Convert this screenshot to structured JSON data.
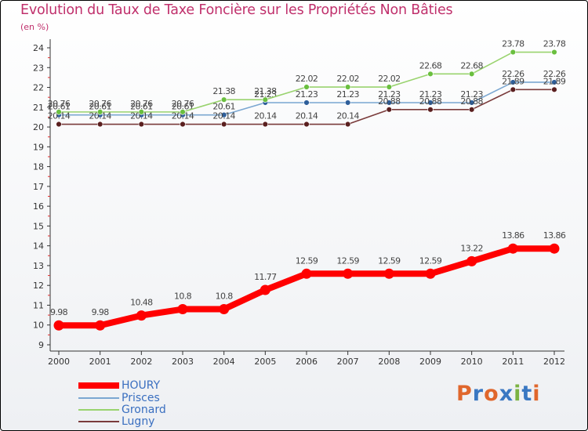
{
  "title": "Evolution du Taux de Taxe Foncière sur les Propriétés Non Bâties",
  "unit_label": "(en %)",
  "logo": {
    "text": "Proxiti",
    "letters": [
      "P",
      "r",
      "o",
      "x",
      "i",
      "t",
      "i"
    ],
    "colors": [
      "#e0672c",
      "#3a78c2",
      "#e0672c",
      "#3a78c2",
      "#7cb342",
      "#3a78c2",
      "#e0672c"
    ]
  },
  "chart_data": {
    "type": "line",
    "title": "Evolution du Taux de Taxe Foncière sur les Propriétés Non Bâties",
    "ylabel": "(en %)",
    "xlabel": "",
    "x": [
      "2000",
      "2001",
      "2002",
      "2003",
      "2004",
      "2005",
      "2006",
      "2007",
      "2008",
      "2009",
      "2010",
      "2011",
      "2012"
    ],
    "ylim": [
      9,
      24
    ],
    "yticks": [
      9,
      10,
      11,
      12,
      13,
      14,
      15,
      16,
      17,
      18,
      19,
      20,
      21,
      22,
      23,
      24
    ],
    "grid": false,
    "legend_position": "bottom-left",
    "series": [
      {
        "name": "HOURY",
        "color": "#ff0000",
        "emphasis": true,
        "values": [
          9.98,
          9.98,
          10.48,
          10.8,
          10.8,
          11.77,
          12.59,
          12.59,
          12.59,
          12.59,
          13.22,
          13.86,
          13.86
        ],
        "labels": [
          "9.98",
          "9.98",
          "10.48",
          "10.8",
          "10.8",
          "11.77",
          "12.59",
          "12.59",
          "12.59",
          "12.59",
          "13.22",
          "13.86",
          "13.86"
        ]
      },
      {
        "name": "Prisces",
        "color": "#7ba7d1",
        "marker": "#2f5f9a",
        "values": [
          20.61,
          20.61,
          20.61,
          20.61,
          20.61,
          21.23,
          21.23,
          21.23,
          21.23,
          21.23,
          21.23,
          22.26,
          22.26
        ],
        "labels": [
          "20.61",
          "20.61",
          "20.61",
          "20.61",
          "20.61",
          "21.23",
          "21.23",
          "21.23",
          "21.23",
          "21.23",
          "21.23",
          "22.26",
          "22.26"
        ]
      },
      {
        "name": "Gronard",
        "color": "#99d36e",
        "marker": "#6abf3f",
        "values": [
          20.76,
          20.76,
          20.76,
          20.76,
          21.38,
          21.38,
          22.02,
          22.02,
          22.02,
          22.68,
          22.68,
          23.78,
          23.78
        ],
        "labels": [
          "20.76",
          "20.76",
          "20.76",
          "20.76",
          "21.38",
          "21.38",
          "22.02",
          "22.02",
          "22.02",
          "22.68",
          "22.68",
          "23.78",
          "23.78"
        ]
      },
      {
        "name": "Lugny",
        "color": "#7a3b3b",
        "marker": "#5a1f1f",
        "values": [
          20.14,
          20.14,
          20.14,
          20.14,
          20.14,
          20.14,
          20.14,
          20.14,
          20.88,
          20.88,
          20.88,
          21.89,
          21.89
        ],
        "labels": [
          "20.14",
          "20.14",
          "20.14",
          "20.14",
          "20.14",
          "20.14",
          "20.14",
          "20.14",
          "20.88",
          "20.88",
          "20.88",
          "21.89",
          "21.89"
        ]
      }
    ]
  }
}
